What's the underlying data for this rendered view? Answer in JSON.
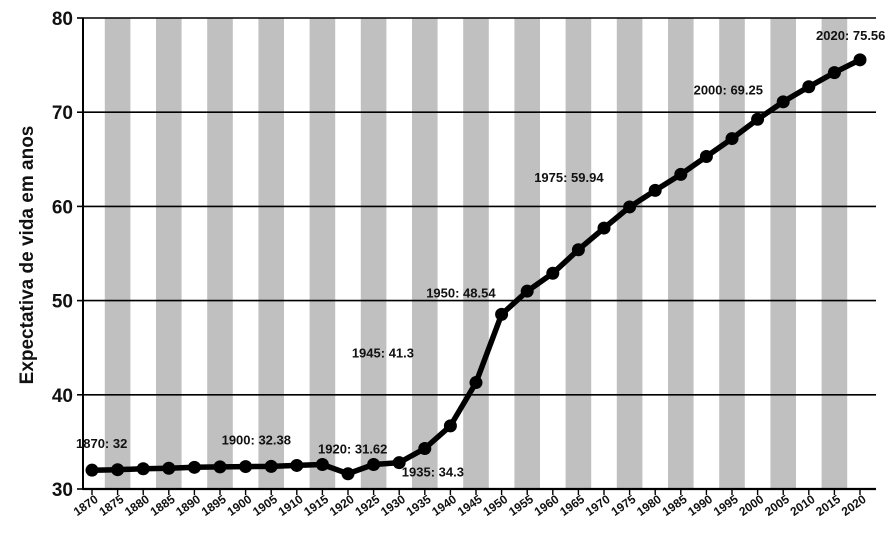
{
  "chart_data": {
    "type": "line",
    "title": "",
    "xlabel": "",
    "ylabel": "Expectativa de vida em anos",
    "ylim": [
      30,
      80
    ],
    "yticks": [
      30,
      40,
      50,
      60,
      70,
      80
    ],
    "xlim": [
      1870,
      2020
    ],
    "grid": "horizontal lines at major ticks; alternating gray vertical bands",
    "series": [
      {
        "x": [
          1870,
          1875,
          1880,
          1885,
          1890,
          1895,
          1900,
          1905,
          1910,
          1915,
          1920,
          1925,
          1930,
          1935,
          1940,
          1945,
          1950,
          1955,
          1960,
          1965,
          1970,
          1975,
          1980,
          1985,
          1990,
          1995,
          2000,
          2005,
          2010,
          2015,
          2020
        ],
        "values": [
          32,
          32.05,
          32.15,
          32.2,
          32.3,
          32.35,
          32.38,
          32.4,
          32.5,
          32.6,
          31.62,
          32.6,
          32.8,
          34.3,
          36.7,
          41.3,
          48.54,
          51.0,
          52.9,
          55.4,
          57.7,
          59.94,
          61.7,
          63.4,
          65.3,
          67.2,
          69.25,
          71.1,
          72.7,
          74.2,
          75.56
        ]
      }
    ],
    "annotations": [
      {
        "text": "1870: 32",
        "x": 1870,
        "y": 32
      },
      {
        "text": "1900: 32.38",
        "x": 1900,
        "y": 32.38
      },
      {
        "text": "1920: 31.62",
        "x": 1920,
        "y": 31.62
      },
      {
        "text": "1935: 34.3",
        "x": 1935,
        "y": 34.3
      },
      {
        "text": "1945: 41.3",
        "x": 1945,
        "y": 41.3
      },
      {
        "text": "1950: 48.54",
        "x": 1950,
        "y": 48.54
      },
      {
        "text": "1975: 59.94",
        "x": 1975,
        "y": 59.94
      },
      {
        "text": "2000: 69.25",
        "x": 2000,
        "y": 69.25
      },
      {
        "text": "2020: 75.56",
        "x": 2020,
        "y": 75.56
      }
    ]
  },
  "colors": {
    "band": "#c0c0c0",
    "line": "#000000",
    "grid": "#000000"
  }
}
